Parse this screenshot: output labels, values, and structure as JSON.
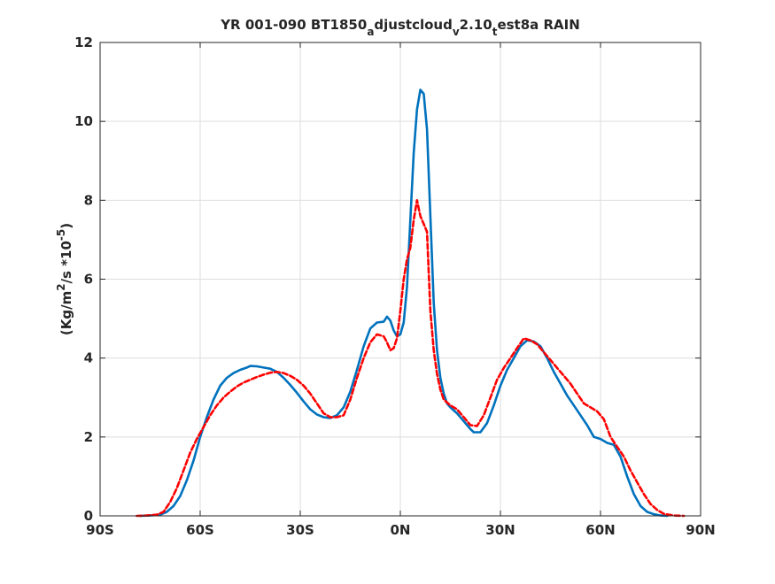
{
  "chart_data": {
    "type": "line",
    "title": {
      "parts": [
        {
          "text": "YR 001-090 BT1850",
          "shift": "normal"
        },
        {
          "text": "a",
          "shift": "sub"
        },
        {
          "text": "djustcloud",
          "shift": "normal"
        },
        {
          "text": "v",
          "shift": "sub"
        },
        {
          "text": "2.10",
          "shift": "normal"
        },
        {
          "text": "t",
          "shift": "sub"
        },
        {
          "text": "est8a RAIN",
          "shift": "normal"
        }
      ]
    },
    "ylabel": {
      "parts": [
        {
          "text": "(Kg/m",
          "shift": "normal"
        },
        {
          "text": "2",
          "shift": "super"
        },
        {
          "text": "/s   *10",
          "shift": "normal"
        },
        {
          "text": "-5",
          "shift": "super"
        },
        {
          "text": ")",
          "shift": "normal"
        }
      ]
    },
    "xlabel": "",
    "xlim": [
      -90,
      90
    ],
    "ylim": [
      0,
      12
    ],
    "x_ticks": [
      {
        "value": -90,
        "label": "90S"
      },
      {
        "value": -60,
        "label": "60S"
      },
      {
        "value": -30,
        "label": "30S"
      },
      {
        "value": 0,
        "label": "0N"
      },
      {
        "value": 30,
        "label": "30N"
      },
      {
        "value": 60,
        "label": "60N"
      },
      {
        "value": 90,
        "label": "90N"
      }
    ],
    "y_ticks": [
      {
        "value": 0,
        "label": "0"
      },
      {
        "value": 2,
        "label": "2"
      },
      {
        "value": 4,
        "label": "4"
      },
      {
        "value": 6,
        "label": "6"
      },
      {
        "value": 8,
        "label": "8"
      },
      {
        "value": 10,
        "label": "10"
      },
      {
        "value": 12,
        "label": "12"
      }
    ],
    "grid": true,
    "series": [
      {
        "color": "#0072BD",
        "style": "solid",
        "points": [
          [
            -78,
            0
          ],
          [
            -75,
            0.01
          ],
          [
            -72,
            0.03
          ],
          [
            -70,
            0.1
          ],
          [
            -68,
            0.25
          ],
          [
            -66,
            0.5
          ],
          [
            -64,
            0.9
          ],
          [
            -62,
            1.4
          ],
          [
            -60,
            2.0
          ],
          [
            -58,
            2.5
          ],
          [
            -56,
            2.95
          ],
          [
            -54,
            3.3
          ],
          [
            -52,
            3.5
          ],
          [
            -50,
            3.62
          ],
          [
            -48,
            3.7
          ],
          [
            -46,
            3.76
          ],
          [
            -45,
            3.8
          ],
          [
            -43,
            3.79
          ],
          [
            -41,
            3.76
          ],
          [
            -39,
            3.73
          ],
          [
            -37,
            3.65
          ],
          [
            -35,
            3.5
          ],
          [
            -33,
            3.32
          ],
          [
            -31,
            3.12
          ],
          [
            -29,
            2.9
          ],
          [
            -27,
            2.7
          ],
          [
            -25,
            2.57
          ],
          [
            -23,
            2.5
          ],
          [
            -21,
            2.48
          ],
          [
            -19,
            2.55
          ],
          [
            -17,
            2.75
          ],
          [
            -15,
            3.15
          ],
          [
            -13,
            3.7
          ],
          [
            -11,
            4.3
          ],
          [
            -9,
            4.75
          ],
          [
            -7,
            4.9
          ],
          [
            -5,
            4.92
          ],
          [
            -4,
            5.05
          ],
          [
            -3,
            4.95
          ],
          [
            -2,
            4.7
          ],
          [
            -1,
            4.55
          ],
          [
            0,
            4.6
          ],
          [
            1,
            4.9
          ],
          [
            2,
            5.8
          ],
          [
            3,
            7.5
          ],
          [
            4,
            9.2
          ],
          [
            5,
            10.3
          ],
          [
            6,
            10.8
          ],
          [
            7,
            10.7
          ],
          [
            8,
            9.8
          ],
          [
            9,
            7.6
          ],
          [
            10,
            5.4
          ],
          [
            11,
            4.2
          ],
          [
            12,
            3.5
          ],
          [
            13,
            3.1
          ],
          [
            14,
            2.85
          ],
          [
            15,
            2.75
          ],
          [
            17,
            2.6
          ],
          [
            19,
            2.4
          ],
          [
            21,
            2.2
          ],
          [
            22,
            2.12
          ],
          [
            24,
            2.12
          ],
          [
            26,
            2.35
          ],
          [
            28,
            2.8
          ],
          [
            30,
            3.3
          ],
          [
            32,
            3.7
          ],
          [
            34,
            4.0
          ],
          [
            36,
            4.3
          ],
          [
            38,
            4.45
          ],
          [
            40,
            4.42
          ],
          [
            42,
            4.3
          ],
          [
            44,
            4.0
          ],
          [
            46,
            3.65
          ],
          [
            48,
            3.35
          ],
          [
            50,
            3.05
          ],
          [
            52,
            2.8
          ],
          [
            54,
            2.55
          ],
          [
            56,
            2.3
          ],
          [
            58,
            2.0
          ],
          [
            60,
            1.95
          ],
          [
            62,
            1.85
          ],
          [
            64,
            1.8
          ],
          [
            66,
            1.5
          ],
          [
            68,
            1.0
          ],
          [
            70,
            0.55
          ],
          [
            72,
            0.25
          ],
          [
            74,
            0.1
          ],
          [
            76,
            0.04
          ],
          [
            78,
            0.01
          ],
          [
            80,
            0
          ]
        ]
      },
      {
        "color": "#FF0000",
        "style": "dashed",
        "points": [
          [
            -79,
            0
          ],
          [
            -76,
            0.01
          ],
          [
            -73,
            0.03
          ],
          [
            -71,
            0.1
          ],
          [
            -69,
            0.35
          ],
          [
            -67,
            0.7
          ],
          [
            -65,
            1.15
          ],
          [
            -63,
            1.6
          ],
          [
            -61,
            1.95
          ],
          [
            -59,
            2.25
          ],
          [
            -57,
            2.55
          ],
          [
            -55,
            2.8
          ],
          [
            -53,
            3.0
          ],
          [
            -51,
            3.15
          ],
          [
            -49,
            3.28
          ],
          [
            -47,
            3.38
          ],
          [
            -45,
            3.45
          ],
          [
            -43,
            3.52
          ],
          [
            -41,
            3.58
          ],
          [
            -39,
            3.63
          ],
          [
            -37,
            3.65
          ],
          [
            -35,
            3.62
          ],
          [
            -33,
            3.55
          ],
          [
            -31,
            3.45
          ],
          [
            -29,
            3.3
          ],
          [
            -27,
            3.1
          ],
          [
            -25,
            2.85
          ],
          [
            -23,
            2.6
          ],
          [
            -21,
            2.5
          ],
          [
            -19,
            2.5
          ],
          [
            -17,
            2.55
          ],
          [
            -15,
            2.95
          ],
          [
            -13,
            3.5
          ],
          [
            -11,
            4.0
          ],
          [
            -9,
            4.4
          ],
          [
            -7,
            4.6
          ],
          [
            -5,
            4.55
          ],
          [
            -4,
            4.4
          ],
          [
            -3,
            4.2
          ],
          [
            -2,
            4.25
          ],
          [
            -1,
            4.5
          ],
          [
            0,
            5.2
          ],
          [
            1,
            6.0
          ],
          [
            2,
            6.5
          ],
          [
            3,
            6.8
          ],
          [
            4,
            7.5
          ],
          [
            5,
            8.0
          ],
          [
            6,
            7.6
          ],
          [
            7,
            7.4
          ],
          [
            8,
            7.2
          ],
          [
            9,
            5.2
          ],
          [
            10,
            4.2
          ],
          [
            11,
            3.6
          ],
          [
            12,
            3.2
          ],
          [
            13,
            2.95
          ],
          [
            15,
            2.8
          ],
          [
            17,
            2.7
          ],
          [
            19,
            2.5
          ],
          [
            21,
            2.3
          ],
          [
            23,
            2.28
          ],
          [
            25,
            2.55
          ],
          [
            27,
            3.0
          ],
          [
            29,
            3.45
          ],
          [
            31,
            3.75
          ],
          [
            33,
            4.0
          ],
          [
            35,
            4.25
          ],
          [
            37,
            4.5
          ],
          [
            39,
            4.45
          ],
          [
            41,
            4.35
          ],
          [
            43,
            4.15
          ],
          [
            45,
            3.95
          ],
          [
            47,
            3.75
          ],
          [
            49,
            3.55
          ],
          [
            51,
            3.35
          ],
          [
            53,
            3.1
          ],
          [
            55,
            2.85
          ],
          [
            57,
            2.75
          ],
          [
            59,
            2.65
          ],
          [
            61,
            2.45
          ],
          [
            63,
            2.0
          ],
          [
            65,
            1.75
          ],
          [
            67,
            1.5
          ],
          [
            69,
            1.15
          ],
          [
            71,
            0.85
          ],
          [
            73,
            0.55
          ],
          [
            75,
            0.3
          ],
          [
            77,
            0.15
          ],
          [
            79,
            0.05
          ],
          [
            82,
            0.01
          ],
          [
            85,
            0
          ]
        ]
      }
    ]
  }
}
